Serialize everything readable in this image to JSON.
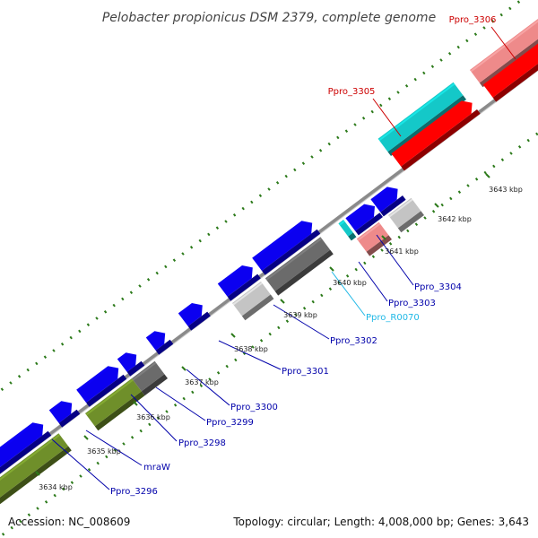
{
  "title": "Pelobacter propionicus DSM 2379, complete genome",
  "footer": {
    "accession": "Accession: NC_008609",
    "summary": "Topology: circular; Length: 4,008,000 bp; Genes: 3,643"
  },
  "colors": {
    "blue": "#0b00f0",
    "olive": "#6f8f2a",
    "dark_gray": "#6b6b6b",
    "light_gray": "#c4c4c4",
    "red": "#ff0000",
    "pink": "#ee8a8a",
    "cyan": "#14c8c8",
    "dot_green": "#2c7a1a",
    "label_blue": "#0000aa",
    "label_red": "#cc0000",
    "label_cyan": "#1fb8e6",
    "backbone": "#8a8a8a"
  },
  "scale_ticks": [
    {
      "label": "3634 kbp"
    },
    {
      "label": "3635 kbp"
    },
    {
      "label": "3636 kbp"
    },
    {
      "label": "3637 kbp"
    },
    {
      "label": "3638 kbp"
    },
    {
      "label": "3639 kbp"
    },
    {
      "label": "3640 kbp"
    },
    {
      "label": "3641 kbp"
    },
    {
      "label": "3642 kbp"
    },
    {
      "label": "3643 kbp"
    }
  ],
  "gene_labels": [
    {
      "text": "Ppro_3296",
      "color": "label_blue"
    },
    {
      "text": "mraW",
      "color": "label_blue"
    },
    {
      "text": "Ppro_3298",
      "color": "label_blue"
    },
    {
      "text": "Ppro_3299",
      "color": "label_blue"
    },
    {
      "text": "Ppro_3300",
      "color": "label_blue"
    },
    {
      "text": "Ppro_3301",
      "color": "label_blue"
    },
    {
      "text": "Ppro_3302",
      "color": "label_blue"
    },
    {
      "text": "Ppro_R0070",
      "color": "label_cyan"
    },
    {
      "text": "Ppro_3303",
      "color": "label_blue"
    },
    {
      "text": "Ppro_3304",
      "color": "label_blue"
    },
    {
      "text": "Ppro_3305",
      "color": "label_red"
    },
    {
      "text": "Ppro_3306",
      "color": "label_red"
    }
  ]
}
